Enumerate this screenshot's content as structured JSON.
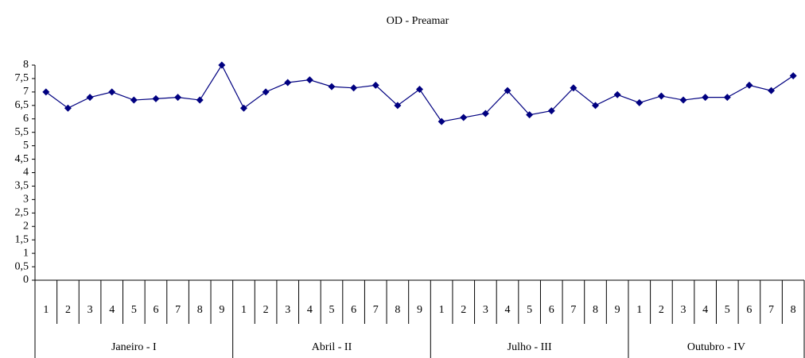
{
  "chart_data": {
    "type": "line",
    "title": "OD - Preamar",
    "category_groups": [
      {
        "label": "Janeiro - I",
        "categories": [
          "1",
          "2",
          "3",
          "4",
          "5",
          "6",
          "7",
          "8",
          "9"
        ]
      },
      {
        "label": "Abril - II",
        "categories": [
          "1",
          "2",
          "3",
          "4",
          "5",
          "6",
          "7",
          "8",
          "9"
        ]
      },
      {
        "label": "Julho - III",
        "categories": [
          "1",
          "2",
          "3",
          "4",
          "5",
          "6",
          "7",
          "8",
          "9"
        ]
      },
      {
        "label": "Outubro - IV",
        "categories": [
          "1",
          "2",
          "3",
          "4",
          "5",
          "6",
          "7",
          "8"
        ]
      }
    ],
    "values": [
      7.0,
      6.4,
      6.8,
      7.0,
      6.7,
      6.75,
      6.8,
      6.7,
      8.0,
      6.4,
      7.0,
      7.35,
      7.45,
      7.2,
      7.15,
      7.25,
      6.5,
      7.1,
      5.9,
      6.05,
      6.2,
      7.05,
      6.15,
      6.3,
      7.15,
      6.5,
      6.9,
      6.6,
      6.85,
      6.7,
      6.8,
      6.8,
      7.25,
      7.05,
      7.6
    ],
    "color": "#000080",
    "ylim": [
      0,
      8
    ],
    "yticks": [
      0,
      {
        "value": 0.5,
        "label": "0,5"
      },
      1,
      {
        "value": 1.5,
        "label": "1,5"
      },
      2,
      {
        "value": 2.5,
        "label": "2,5"
      },
      3,
      {
        "value": 3.5,
        "label": "3,5"
      },
      4,
      {
        "value": 4.5,
        "label": "4,5"
      },
      5,
      {
        "value": 5.5,
        "label": "5,5"
      },
      6,
      {
        "value": 6.5,
        "label": "6,5"
      },
      7,
      {
        "value": 7.5,
        "label": "7,5"
      },
      8
    ]
  }
}
